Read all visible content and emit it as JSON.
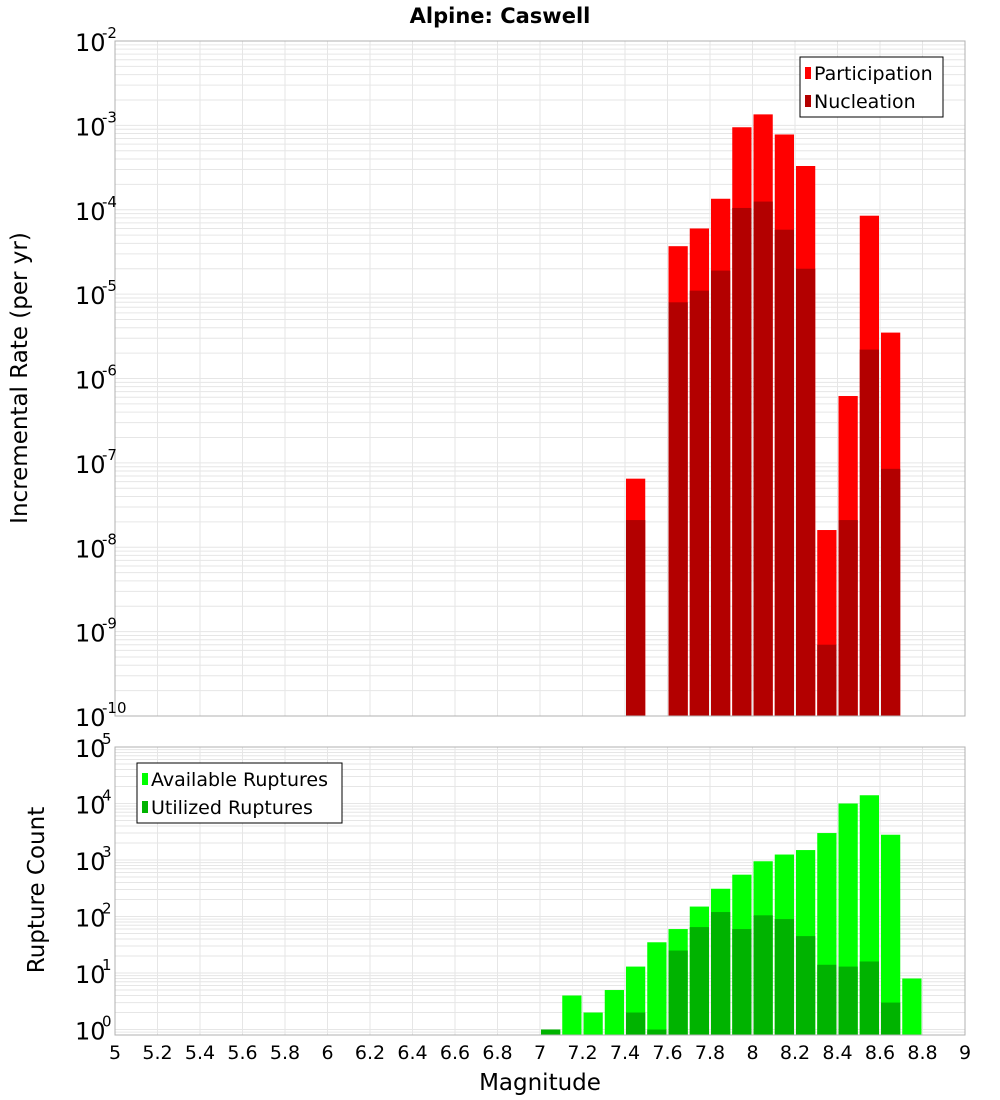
{
  "title": "Alpine: Caswell",
  "colors": {
    "participation": "#ff0000",
    "nucleation": "#b30000",
    "available": "#00ff00",
    "utilized": "#00b300",
    "grid": "#e6e6e6",
    "frame": "#b0b0b0"
  },
  "chart_data": [
    {
      "type": "bar",
      "ylabel": "Incremental Rate (per yr)",
      "yscale": "log",
      "ylim": [
        1e-10,
        0.01
      ],
      "xlim": [
        5,
        9
      ],
      "bin_width": 0.1,
      "y_tick_exponents": [
        -10,
        -9,
        -8,
        -7,
        -6,
        -5,
        -4,
        -3,
        -2
      ],
      "legend": {
        "position": "top-right",
        "entries": [
          "Participation",
          "Nucleation"
        ]
      },
      "series": [
        {
          "name": "Participation",
          "x": [
            7.45,
            7.65,
            7.75,
            7.85,
            7.95,
            8.05,
            8.15,
            8.25,
            8.35,
            8.45,
            8.55,
            8.65
          ],
          "values": [
            6.5e-08,
            3.7e-05,
            6e-05,
            0.000135,
            0.00095,
            0.00135,
            0.00078,
            0.00033,
            1.6e-08,
            6.2e-07,
            8.5e-05,
            3.5e-06
          ]
        },
        {
          "name": "Nucleation",
          "x": [
            7.45,
            7.65,
            7.75,
            7.85,
            7.95,
            8.05,
            8.15,
            8.25,
            8.35,
            8.45,
            8.55,
            8.65
          ],
          "values": [
            2.1e-08,
            8e-06,
            1.1e-05,
            1.9e-05,
            0.000105,
            0.000125,
            5.8e-05,
            2e-05,
            7e-10,
            2.1e-08,
            2.2e-06,
            8.5e-08
          ]
        }
      ]
    },
    {
      "type": "bar",
      "xlabel": "Magnitude",
      "ylabel": "Rupture Count",
      "yscale": "log",
      "ylim": [
        0.8,
        100000
      ],
      "xlim": [
        5,
        9
      ],
      "bin_width": 0.1,
      "x_ticks": [
        "5",
        "5.2",
        "5.4",
        "5.6",
        "5.8",
        "6",
        "6.2",
        "6.4",
        "6.6",
        "6.8",
        "7",
        "7.2",
        "7.4",
        "7.6",
        "7.8",
        "8",
        "8.2",
        "8.4",
        "8.6",
        "8.8",
        "9"
      ],
      "y_tick_exponents": [
        0,
        1,
        2,
        3,
        4,
        5
      ],
      "legend": {
        "position": "top-left",
        "entries": [
          "Available Ruptures",
          "Utilized Ruptures"
        ]
      },
      "series": [
        {
          "name": "Available Ruptures",
          "x": [
            7.05,
            7.15,
            7.25,
            7.35,
            7.45,
            7.55,
            7.65,
            7.75,
            7.85,
            7.95,
            8.05,
            8.15,
            8.25,
            8.35,
            8.45,
            8.55,
            8.65,
            8.75
          ],
          "values": [
            1,
            4,
            2,
            5,
            13,
            35,
            60,
            150,
            310,
            550,
            950,
            1250,
            1500,
            3000,
            10000,
            14000,
            2800,
            8
          ]
        },
        {
          "name": "Utilized Ruptures",
          "x": [
            7.05,
            7.45,
            7.55,
            7.65,
            7.75,
            7.85,
            7.95,
            8.05,
            8.15,
            8.25,
            8.35,
            8.45,
            8.55,
            8.65
          ],
          "values": [
            1,
            2,
            1,
            25,
            65,
            120,
            60,
            105,
            90,
            45,
            14,
            13,
            16,
            3
          ]
        }
      ]
    }
  ]
}
